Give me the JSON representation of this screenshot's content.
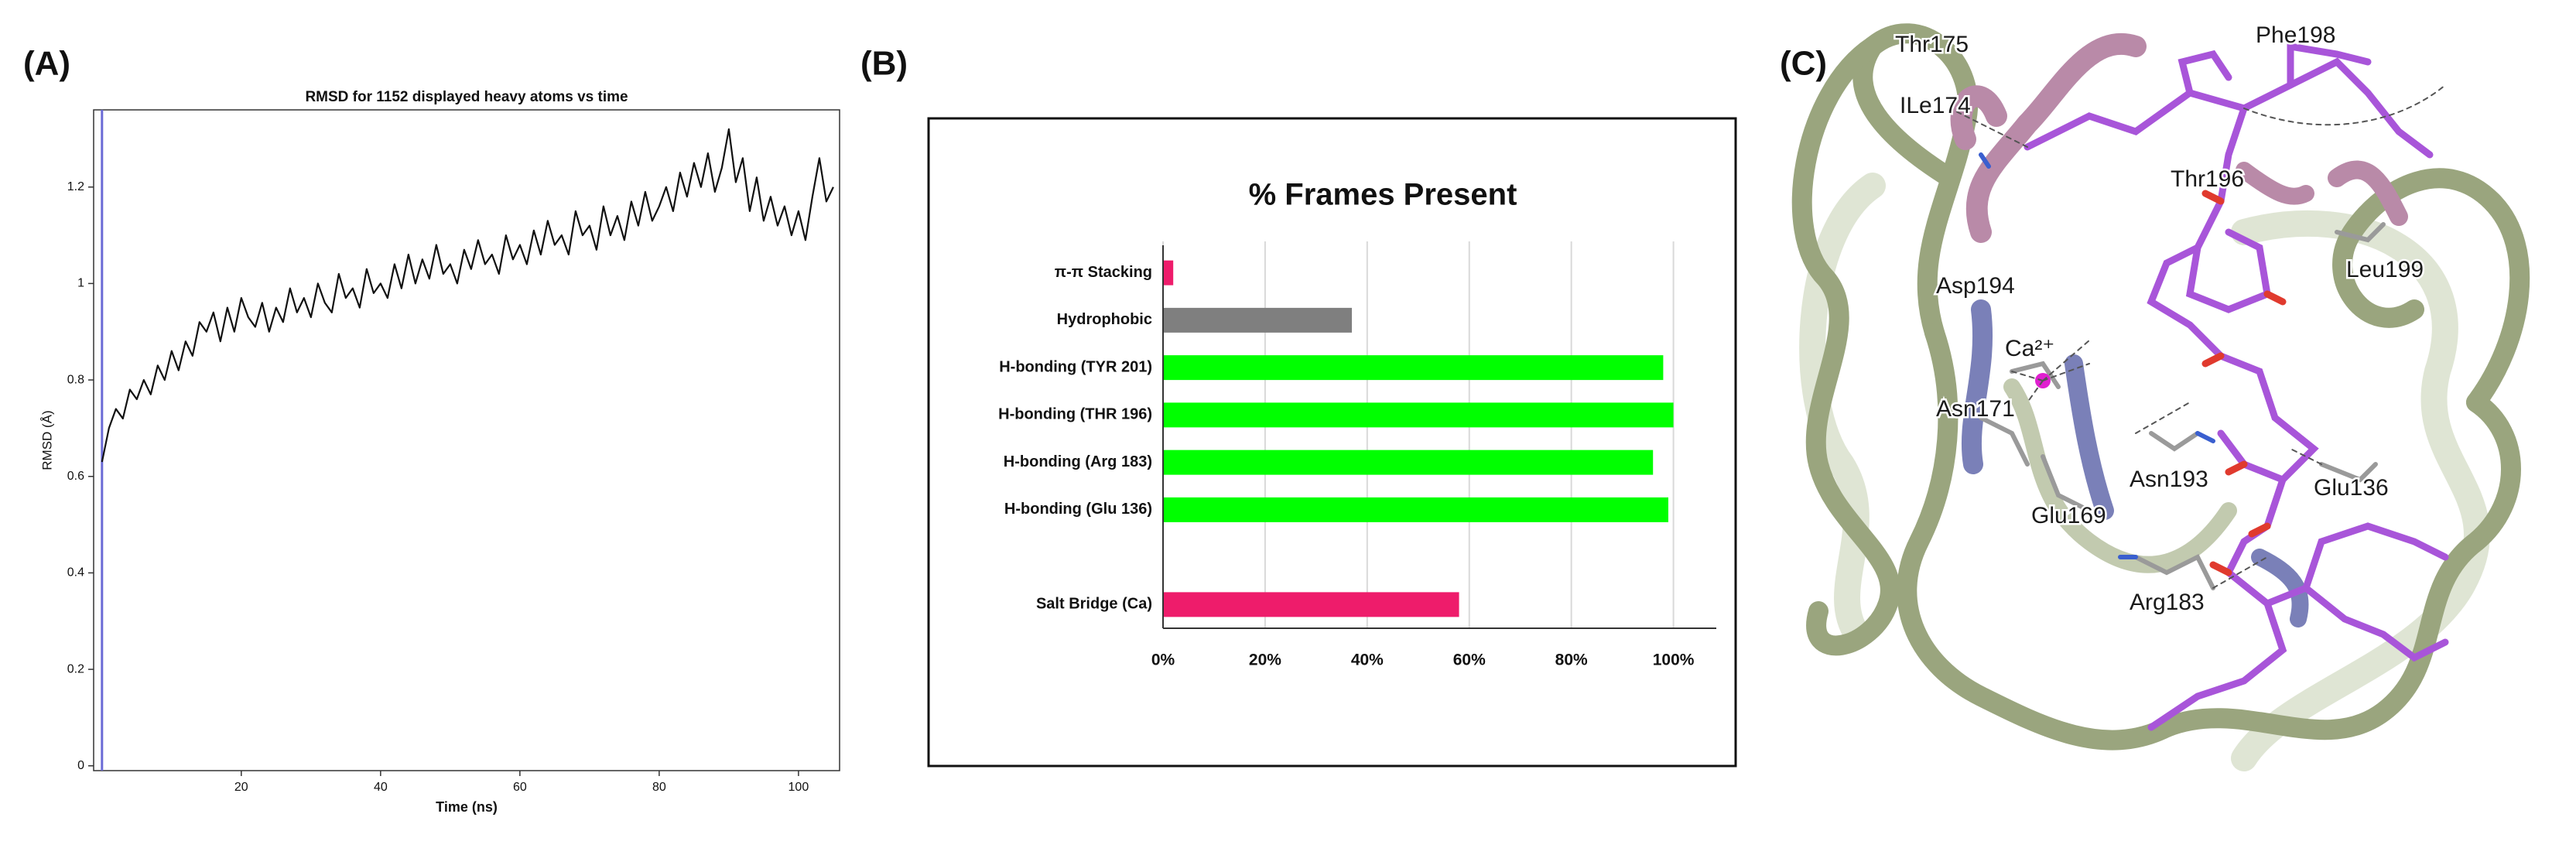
{
  "chart_data": [
    {
      "type": "line",
      "panel_label": "(A)",
      "title": "RMSD for 1152 displayed heavy atoms vs time",
      "x_label": "Time (ns)",
      "y_label": "RMSD (Å)",
      "x": [
        0,
        1,
        2,
        3,
        4,
        5,
        6,
        7,
        8,
        9,
        10,
        11,
        12,
        13,
        14,
        15,
        16,
        17,
        18,
        19,
        20,
        21,
        22,
        23,
        24,
        25,
        26,
        27,
        28,
        29,
        30,
        31,
        32,
        33,
        34,
        35,
        36,
        37,
        38,
        39,
        40,
        41,
        42,
        43,
        44,
        45,
        46,
        47,
        48,
        49,
        50,
        51,
        52,
        53,
        54,
        55,
        56,
        57,
        58,
        59,
        60,
        61,
        62,
        63,
        64,
        65,
        66,
        67,
        68,
        69,
        70,
        71,
        72,
        73,
        74,
        75,
        76,
        77,
        78,
        79,
        80,
        81,
        82,
        83,
        84,
        85,
        86,
        87,
        88,
        89,
        90,
        91,
        92,
        93,
        94,
        95,
        96,
        97,
        98,
        99,
        100,
        101,
        102,
        103,
        104,
        105
      ],
      "series": [
        {
          "name": "RMSD",
          "color": "#111111",
          "values": [
            0.63,
            0.7,
            0.74,
            0.72,
            0.78,
            0.76,
            0.8,
            0.77,
            0.83,
            0.8,
            0.86,
            0.82,
            0.88,
            0.85,
            0.92,
            0.9,
            0.94,
            0.88,
            0.95,
            0.9,
            0.97,
            0.93,
            0.91,
            0.96,
            0.9,
            0.95,
            0.92,
            0.99,
            0.94,
            0.97,
            0.93,
            1.0,
            0.96,
            0.94,
            1.02,
            0.97,
            0.99,
            0.95,
            1.03,
            0.98,
            1.0,
            0.97,
            1.04,
            0.99,
            1.06,
            1.0,
            1.05,
            1.01,
            1.08,
            1.02,
            1.04,
            1.0,
            1.07,
            1.03,
            1.09,
            1.04,
            1.06,
            1.02,
            1.1,
            1.05,
            1.08,
            1.04,
            1.11,
            1.06,
            1.13,
            1.08,
            1.1,
            1.06,
            1.15,
            1.1,
            1.12,
            1.07,
            1.16,
            1.1,
            1.14,
            1.09,
            1.17,
            1.12,
            1.19,
            1.13,
            1.16,
            1.2,
            1.15,
            1.23,
            1.18,
            1.25,
            1.2,
            1.27,
            1.19,
            1.24,
            1.32,
            1.21,
            1.26,
            1.15,
            1.22,
            1.13,
            1.18,
            1.12,
            1.16,
            1.1,
            1.15,
            1.09,
            1.18,
            1.26,
            1.17,
            1.2
          ]
        }
      ],
      "xlim": [
        -1.2,
        105.9
      ],
      "ylim": [
        -0.01,
        1.36
      ],
      "xticks": [
        20,
        40,
        60,
        80,
        100
      ],
      "yticks": [
        0,
        0.2,
        0.4,
        0.6,
        0.8,
        1,
        1.2
      ]
    },
    {
      "type": "barh",
      "panel_label": "(B)",
      "title": "% Frames Present",
      "categories": [
        "π-π Stacking",
        "Hydrophobic",
        "H-bonding (TYR 201)",
        "H-bonding (THR 196)",
        "H-bonding (Arg 183)",
        "H-bonding (Glu 136)",
        null,
        "Salt Bridge (Ca)"
      ],
      "values": [
        2,
        37,
        98,
        100,
        96,
        99,
        null,
        58
      ],
      "colors": [
        "#ee1c6b",
        "#7f7f7f",
        "#00ff00",
        "#00ff00",
        "#00ff00",
        "#00ff00",
        null,
        "#ee1c6b"
      ],
      "xlim": [
        0,
        108.4
      ],
      "xticks": [
        {
          "value": 0,
          "label": "0%"
        },
        {
          "value": 20,
          "label": "20%"
        },
        {
          "value": 40,
          "label": "40%"
        },
        {
          "value": 60,
          "label": "60%"
        },
        {
          "value": 80,
          "label": "80%"
        },
        {
          "value": 100,
          "label": "100%"
        }
      ],
      "grid": true
    }
  ],
  "panel_c": {
    "panel_label": "(C)",
    "labels": [
      "Thr175",
      "Phe198",
      "ILe174",
      "Thr196",
      "Leu199",
      "Asp194",
      "Ca²⁺",
      "Asn171",
      "Asn193",
      "Glu136",
      "Glu169",
      "Arg183"
    ]
  }
}
